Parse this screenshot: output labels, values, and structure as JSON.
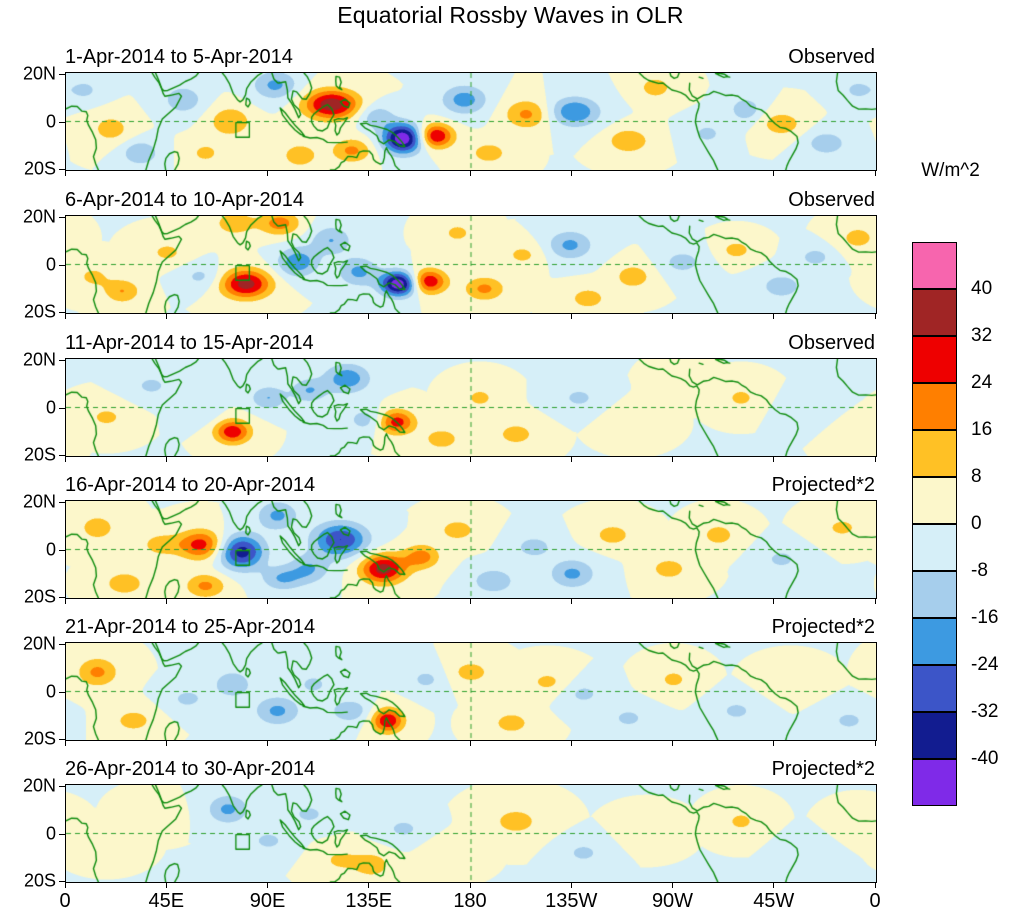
{
  "title": "Equatorial Rossby Waves in OLR",
  "colorbar": {
    "units_label": "W/m^2",
    "tick_labels": [
      "40",
      "32",
      "24",
      "16",
      "8",
      "0",
      "-8",
      "-16",
      "-24",
      "-32",
      "-40"
    ]
  },
  "x_axis": {
    "tick_labels": [
      "0",
      "45E",
      "90E",
      "135E",
      "180",
      "135W",
      "90W",
      "45W",
      "0"
    ]
  },
  "y_axis": {
    "tick_labels": [
      "20N",
      "0",
      "20S"
    ]
  },
  "chart_data": {
    "type": "heatmap",
    "title": "Equatorial Rossby Waves in OLR",
    "units": "W/m^2",
    "lon_range": [
      0,
      360
    ],
    "lat_range": [
      -20,
      20
    ],
    "lon_tick_labels": [
      "0",
      "45E",
      "90E",
      "135E",
      "180",
      "135W",
      "90W",
      "45W",
      "0"
    ],
    "lat_tick_labels": [
      "20N",
      "0",
      "20S"
    ],
    "contour_levels": [
      -40,
      -32,
      -24,
      -16,
      -8,
      0,
      8,
      16,
      24,
      32,
      40
    ],
    "band_colors_low_to_high": [
      "#7F2AE8",
      "#121C90",
      "#3C55C8",
      "#3D9AE1",
      "#A6CEEC",
      "#D6EFF8",
      "#FCF7CB",
      "#FFC125",
      "#FF7F00",
      "#EE0000",
      "#A02525",
      "#F765AE"
    ],
    "coast_color": "#0E8C0E",
    "reference_line_color": "#2DA02D",
    "dashed_lines": {
      "equator_lat": 0,
      "dateline_lon": 180
    },
    "roi_box_lon_lat": [
      75.5,
      -6.5,
      81.5,
      -0.5
    ],
    "panels": [
      {
        "period": "1-Apr-2014 to 5-Apr-2014",
        "label": "Observed",
        "anomalies": [
          [
            20,
            -3,
            12,
            9,
            6
          ],
          [
            33,
            -13,
            -16,
            8,
            5
          ],
          [
            8,
            13,
            -10,
            8,
            5
          ],
          [
            52,
            9,
            -14,
            9,
            6
          ],
          [
            62,
            -13,
            10,
            8,
            5
          ],
          [
            73,
            0,
            16,
            9,
            6
          ],
          [
            93,
            15,
            -18,
            10,
            6
          ],
          [
            104,
            -14,
            14,
            8,
            5
          ],
          [
            118,
            7,
            38,
            12,
            6
          ],
          [
            127,
            -12,
            18,
            9,
            5
          ],
          [
            138,
            2,
            -14,
            8,
            5
          ],
          [
            150,
            -7,
            -48,
            9,
            6
          ],
          [
            164,
            -6,
            34,
            8,
            5
          ],
          [
            177,
            9,
            -20,
            10,
            6
          ],
          [
            188,
            -13,
            12,
            9,
            5
          ],
          [
            205,
            3,
            18,
            10,
            6
          ],
          [
            226,
            4,
            -24,
            11,
            6
          ],
          [
            250,
            -8,
            16,
            9,
            5
          ],
          [
            262,
            14,
            12,
            8,
            5
          ],
          [
            285,
            -5,
            -10,
            8,
            5
          ],
          [
            302,
            5,
            -14,
            7,
            5
          ],
          [
            318,
            -1,
            14,
            9,
            5
          ],
          [
            338,
            -9,
            -14,
            9,
            5
          ],
          [
            352,
            13,
            -10,
            8,
            5
          ]
        ]
      },
      {
        "period": "6-Apr-2014 to 10-Apr-2014",
        "label": "Observed",
        "anomalies": [
          [
            12,
            -5,
            10,
            8,
            5
          ],
          [
            25,
            -11,
            16,
            8,
            5
          ],
          [
            45,
            5,
            10,
            9,
            5
          ],
          [
            60,
            -5,
            -10,
            9,
            5
          ],
          [
            75,
            17,
            14,
            9,
            5
          ],
          [
            80,
            -8,
            36,
            11,
            6
          ],
          [
            95,
            17,
            20,
            9,
            5
          ],
          [
            103,
            1,
            -22,
            9,
            6
          ],
          [
            118,
            10,
            -16,
            9,
            6
          ],
          [
            130,
            -3,
            -18,
            9,
            6
          ],
          [
            148,
            -8,
            -48,
            8,
            5
          ],
          [
            161,
            -7,
            32,
            8,
            5
          ],
          [
            174,
            13,
            10,
            8,
            5
          ],
          [
            186,
            -10,
            18,
            9,
            5
          ],
          [
            203,
            4,
            10,
            9,
            5
          ],
          [
            224,
            8,
            -18,
            10,
            6
          ],
          [
            232,
            -14,
            12,
            9,
            5
          ],
          [
            252,
            -5,
            14,
            8,
            5
          ],
          [
            274,
            1,
            -12,
            9,
            5
          ],
          [
            298,
            6,
            12,
            7,
            4
          ],
          [
            318,
            -9,
            -14,
            9,
            5
          ],
          [
            333,
            3,
            -12,
            7,
            4
          ],
          [
            352,
            11,
            12,
            8,
            5
          ]
        ]
      },
      {
        "period": "11-Apr-2014 to 15-Apr-2014",
        "label": "Observed",
        "anomalies": [
          [
            18,
            -4,
            10,
            9,
            5
          ],
          [
            38,
            9,
            -10,
            9,
            5
          ],
          [
            60,
            -2,
            -8,
            8,
            5
          ],
          [
            74,
            -10,
            30,
            8,
            5
          ],
          [
            90,
            4,
            -16,
            8,
            5
          ],
          [
            108,
            7,
            -16,
            8,
            5
          ],
          [
            125,
            12,
            -22,
            10,
            6
          ],
          [
            133,
            -5,
            -12,
            8,
            5
          ],
          [
            147,
            -6,
            28,
            8,
            5
          ],
          [
            167,
            -13,
            12,
            9,
            5
          ],
          [
            184,
            4,
            10,
            8,
            5
          ],
          [
            200,
            -11,
            12,
            9,
            5
          ],
          [
            228,
            4,
            -10,
            9,
            5
          ],
          [
            252,
            -6,
            8,
            9,
            5
          ],
          [
            273,
            10,
            8,
            8,
            5
          ],
          [
            300,
            4,
            10,
            8,
            5
          ],
          [
            328,
            -2,
            -8,
            9,
            5
          ],
          [
            350,
            -12,
            8,
            8,
            5
          ]
        ]
      },
      {
        "period": "16-Apr-2014 to 20-Apr-2014",
        "label": "Projected*2",
        "anomalies": [
          [
            14,
            9,
            12,
            9,
            6
          ],
          [
            26,
            -14,
            14,
            9,
            5
          ],
          [
            42,
            2,
            12,
            9,
            5
          ],
          [
            60,
            2,
            28,
            10,
            6
          ],
          [
            62,
            -15,
            18,
            9,
            5
          ],
          [
            78,
            -1,
            -36,
            10,
            7
          ],
          [
            94,
            14,
            -18,
            9,
            6
          ],
          [
            96,
            -12,
            -16,
            9,
            5
          ],
          [
            108,
            -8,
            -16,
            9,
            6
          ],
          [
            122,
            4,
            -32,
            12,
            7
          ],
          [
            141,
            -8,
            36,
            10,
            6
          ],
          [
            158,
            -3,
            20,
            8,
            5
          ],
          [
            174,
            8,
            12,
            9,
            5
          ],
          [
            190,
            -13,
            -16,
            9,
            5
          ],
          [
            208,
            1,
            -12,
            9,
            5
          ],
          [
            225,
            -10,
            -18,
            10,
            6
          ],
          [
            243,
            6,
            12,
            9,
            5
          ],
          [
            268,
            -8,
            12,
            9,
            5
          ],
          [
            290,
            6,
            12,
            8,
            5
          ],
          [
            318,
            -4,
            -10,
            9,
            5
          ],
          [
            345,
            9,
            10,
            9,
            5
          ]
        ]
      },
      {
        "period": "21-Apr-2014 to 25-Apr-2014",
        "label": "Projected*2",
        "anomalies": [
          [
            14,
            8,
            18,
            9,
            6
          ],
          [
            30,
            -12,
            12,
            9,
            5
          ],
          [
            54,
            -3,
            -10,
            9,
            5
          ],
          [
            74,
            3,
            -14,
            9,
            6
          ],
          [
            94,
            -8,
            -18,
            10,
            6
          ],
          [
            110,
            3,
            -10,
            8,
            5
          ],
          [
            126,
            -8,
            -14,
            9,
            5
          ],
          [
            143,
            -12,
            32,
            7,
            5
          ],
          [
            160,
            5,
            -10,
            8,
            5
          ],
          [
            180,
            8,
            12,
            9,
            5
          ],
          [
            198,
            -13,
            12,
            9,
            5
          ],
          [
            214,
            4,
            10,
            9,
            5
          ],
          [
            230,
            -1,
            -10,
            9,
            5
          ],
          [
            250,
            -11,
            -10,
            9,
            5
          ],
          [
            270,
            5,
            10,
            8,
            5
          ],
          [
            298,
            -8,
            -10,
            9,
            5
          ],
          [
            322,
            4,
            8,
            9,
            5
          ],
          [
            348,
            -12,
            -10,
            9,
            5
          ]
        ]
      },
      {
        "period": "26-Apr-2014 to 30-Apr-2014",
        "label": "Projected*2",
        "anomalies": [
          [
            18,
            -4,
            8,
            9,
            5
          ],
          [
            40,
            8,
            6,
            9,
            5
          ],
          [
            72,
            10,
            -18,
            9,
            6
          ],
          [
            90,
            -3,
            -10,
            9,
            5
          ],
          [
            108,
            8,
            -10,
            9,
            5
          ],
          [
            122,
            -11,
            10,
            9,
            5
          ],
          [
            136,
            -13,
            14,
            8,
            5
          ],
          [
            150,
            2,
            -10,
            9,
            5
          ],
          [
            170,
            -8,
            8,
            9,
            5
          ],
          [
            200,
            5,
            12,
            11,
            6
          ],
          [
            230,
            -8,
            -10,
            9,
            5
          ],
          [
            258,
            1,
            6,
            9,
            5
          ],
          [
            300,
            5,
            10,
            8,
            5
          ],
          [
            330,
            -8,
            -8,
            9,
            5
          ],
          [
            352,
            3,
            6,
            8,
            5
          ]
        ]
      }
    ]
  }
}
